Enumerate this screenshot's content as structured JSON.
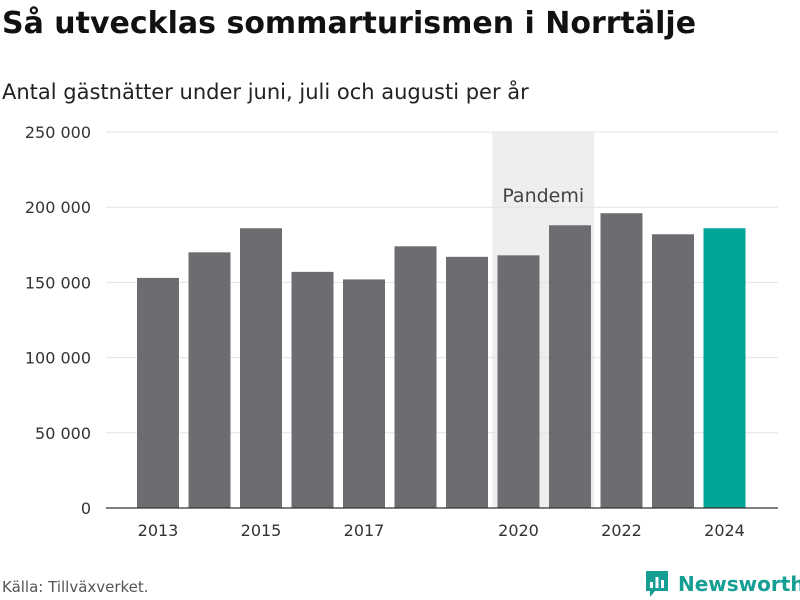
{
  "header": {
    "title": "Så utvecklas sommarturismen i Norrtälje",
    "subtitle": "Antal gästnätter under juni, juli och augusti per år"
  },
  "footer": {
    "source": "Källa: Tillväxverket.",
    "logo_text": "Newsworthy"
  },
  "chart_data": {
    "type": "bar",
    "title": "Så utvecklas sommarturismen i Norrtälje",
    "subtitle": "Antal gästnätter under juni, juli och augusti per år",
    "x": [
      2013,
      2014,
      2015,
      2016,
      2017,
      2018,
      2019,
      2020,
      2021,
      2022,
      2023,
      2024
    ],
    "values": [
      153000,
      170000,
      186000,
      157000,
      152000,
      174000,
      167000,
      168000,
      188000,
      196000,
      182000,
      186000
    ],
    "x_tick_labels": [
      "2013",
      "2015",
      "2017",
      "2020",
      "2022",
      "2024"
    ],
    "x_tick_values": [
      2013,
      2015,
      2017,
      2020,
      2022,
      2024
    ],
    "y_ticks": [
      0,
      50000,
      100000,
      150000,
      200000,
      250000
    ],
    "y_tick_labels": [
      "0",
      "50 000",
      "100 000",
      "150 000",
      "200 000",
      "250 000"
    ],
    "ylim": [
      0,
      250000
    ],
    "grid": true,
    "annotation": {
      "label": "Pandemi",
      "x_start": 2020,
      "x_end": 2021
    },
    "colors": {
      "bar": "#6d6c71",
      "highlight": "#00a499",
      "highlight_year": 2024,
      "band": "#eeeeee",
      "grid": "#e3e3e3"
    }
  }
}
